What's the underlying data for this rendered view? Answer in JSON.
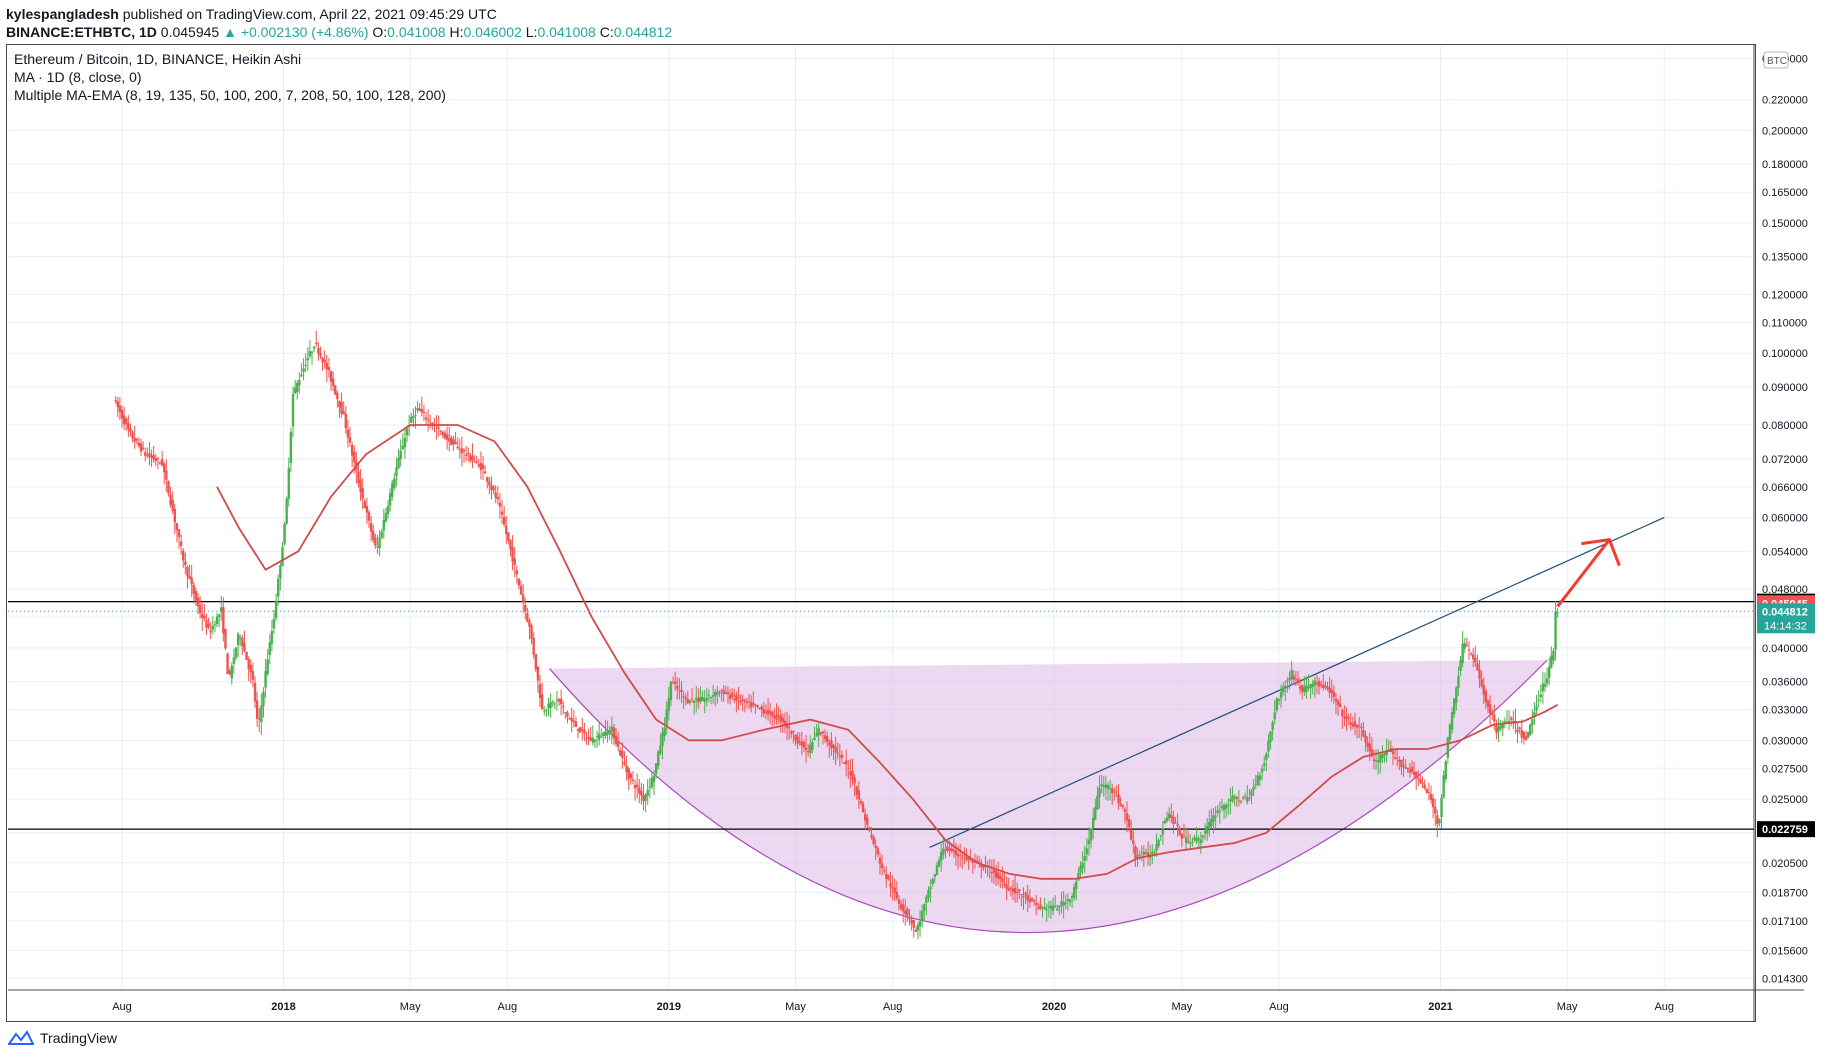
{
  "header": {
    "publisher": "kylespangladesh",
    "published_text": "published on TradingView.com, April 22, 2021 09:45:29 UTC",
    "symbol": "BINANCE:ETHBTC, 1D",
    "last": "0.045945",
    "change": "▲ +0.002130 (+4.86%)",
    "o_label": "O:",
    "o_val": "0.041008",
    "h_label": "H:",
    "h_val": "0.046002",
    "l_label": "L:",
    "l_val": "0.041008",
    "c_label": "C:",
    "c_val": "0.044812"
  },
  "legend": {
    "line1": "Ethereum / Bitcoin, 1D, BINANCE, Heikin Ashi",
    "line2": "MA · 1D (8, close, 0)",
    "line3": "Multiple MA-EMA (8, 19, 135, 50, 100, 200, 7, 208, 50, 100, 128, 200)"
  },
  "footer": {
    "brand": "TradingView"
  },
  "colors": {
    "up": "#26a69a",
    "candle_green": "#4caf50",
    "down": "#ef5350",
    "ma": "#d24b4b",
    "cup_fill": "#e1bee7",
    "cup_line": "#ab47bc",
    "trend": "#1f4e79",
    "arrow": "#f23c2f",
    "grid": "#e8eef5"
  },
  "chart_data": {
    "type": "candlestick",
    "title": "Ethereum / Bitcoin, 1D, BINANCE, Heikin Ashi",
    "currency_badge": "BTC",
    "scale": "log",
    "ylim": [
      0.0138,
      0.26
    ],
    "xlim": [
      "2017-04-15",
      "2021-10-25"
    ],
    "y_ticks": [
      "0.014300",
      "0.015600",
      "0.017100",
      "0.018700",
      "0.020500",
      "0.022500",
      "0.025000",
      "0.027500",
      "0.030000",
      "0.033000",
      "0.036000",
      "0.040000",
      "0.044000",
      "0.048000",
      "0.054000",
      "0.060000",
      "0.066000",
      "0.072000",
      "0.080000",
      "0.090000",
      "0.100000",
      "0.110000",
      "0.120000",
      "0.135000",
      "0.150000",
      "0.165000",
      "0.180000",
      "0.200000",
      "0.220000",
      "0.250000"
    ],
    "x_ticks": [
      {
        "date": "2017-08-01",
        "label": "Aug",
        "bold": false
      },
      {
        "date": "2018-01-01",
        "label": "2018",
        "bold": true
      },
      {
        "date": "2018-05-01",
        "label": "May",
        "bold": false
      },
      {
        "date": "2018-08-01",
        "label": "Aug",
        "bold": false
      },
      {
        "date": "2019-01-01",
        "label": "2019",
        "bold": true
      },
      {
        "date": "2019-05-01",
        "label": "May",
        "bold": false
      },
      {
        "date": "2019-08-01",
        "label": "Aug",
        "bold": false
      },
      {
        "date": "2020-01-01",
        "label": "2020",
        "bold": true
      },
      {
        "date": "2020-05-01",
        "label": "May",
        "bold": false
      },
      {
        "date": "2020-08-01",
        "label": "Aug",
        "bold": false
      },
      {
        "date": "2021-01-01",
        "label": "2021",
        "bold": true
      },
      {
        "date": "2021-05-01",
        "label": "May",
        "bold": false
      },
      {
        "date": "2021-08-01",
        "label": "Aug",
        "bold": false
      }
    ],
    "price_path": [
      [
        "2017-07-26",
        0.087
      ],
      [
        "2017-08-10",
        0.078
      ],
      [
        "2017-08-25",
        0.073
      ],
      [
        "2017-09-10",
        0.071
      ],
      [
        "2017-10-01",
        0.052
      ],
      [
        "2017-10-15",
        0.045
      ],
      [
        "2017-10-25",
        0.042
      ],
      [
        "2017-11-05",
        0.045
      ],
      [
        "2017-11-12",
        0.036
      ],
      [
        "2017-11-22",
        0.042
      ],
      [
        "2017-12-05",
        0.036
      ],
      [
        "2017-12-10",
        0.031
      ],
      [
        "2017-12-18",
        0.038
      ],
      [
        "2017-12-25",
        0.044
      ],
      [
        "2018-01-05",
        0.06
      ],
      [
        "2018-01-12",
        0.088
      ],
      [
        "2018-01-25",
        0.098
      ],
      [
        "2018-02-02",
        0.103
      ],
      [
        "2018-02-15",
        0.094
      ],
      [
        "2018-03-01",
        0.082
      ],
      [
        "2018-03-15",
        0.067
      ],
      [
        "2018-04-01",
        0.054
      ],
      [
        "2018-04-20",
        0.07
      ],
      [
        "2018-05-01",
        0.08
      ],
      [
        "2018-05-10",
        0.084
      ],
      [
        "2018-05-25",
        0.08
      ],
      [
        "2018-06-10",
        0.076
      ],
      [
        "2018-06-25",
        0.073
      ],
      [
        "2018-07-10",
        0.07
      ],
      [
        "2018-07-25",
        0.063
      ],
      [
        "2018-08-05",
        0.055
      ],
      [
        "2018-08-15",
        0.048
      ],
      [
        "2018-08-25",
        0.042
      ],
      [
        "2018-09-05",
        0.033
      ],
      [
        "2018-09-20",
        0.034
      ],
      [
        "2018-10-01",
        0.032
      ],
      [
        "2018-10-20",
        0.03
      ],
      [
        "2018-11-10",
        0.031
      ],
      [
        "2018-11-25",
        0.027
      ],
      [
        "2018-12-10",
        0.025
      ],
      [
        "2018-12-20",
        0.027
      ],
      [
        "2018-12-31",
        0.032
      ],
      [
        "2019-01-05",
        0.036
      ],
      [
        "2019-01-20",
        0.034
      ],
      [
        "2019-02-05",
        0.034
      ],
      [
        "2019-02-20",
        0.035
      ],
      [
        "2019-03-10",
        0.034
      ],
      [
        "2019-04-01",
        0.033
      ],
      [
        "2019-04-20",
        0.032
      ],
      [
        "2019-05-05",
        0.03
      ],
      [
        "2019-05-15",
        0.029
      ],
      [
        "2019-05-25",
        0.031
      ],
      [
        "2019-06-10",
        0.029
      ],
      [
        "2019-06-25",
        0.027
      ],
      [
        "2019-07-10",
        0.023
      ],
      [
        "2019-07-25",
        0.02
      ],
      [
        "2019-08-10",
        0.018
      ],
      [
        "2019-08-20",
        0.0172
      ],
      [
        "2019-08-25",
        0.0165
      ],
      [
        "2019-09-05",
        0.0185
      ],
      [
        "2019-09-20",
        0.0215
      ],
      [
        "2019-10-05",
        0.021
      ],
      [
        "2019-10-20",
        0.0205
      ],
      [
        "2019-11-05",
        0.02
      ],
      [
        "2019-11-20",
        0.019
      ],
      [
        "2019-12-05",
        0.0185
      ],
      [
        "2019-12-20",
        0.0178
      ],
      [
        "2020-01-05",
        0.0178
      ],
      [
        "2020-01-20",
        0.0185
      ],
      [
        "2020-02-05",
        0.022
      ],
      [
        "2020-02-15",
        0.026
      ],
      [
        "2020-02-25",
        0.026
      ],
      [
        "2020-03-10",
        0.024
      ],
      [
        "2020-03-20",
        0.021
      ],
      [
        "2020-04-05",
        0.021
      ],
      [
        "2020-04-20",
        0.024
      ],
      [
        "2020-05-05",
        0.022
      ],
      [
        "2020-05-20",
        0.022
      ],
      [
        "2020-06-05",
        0.024
      ],
      [
        "2020-06-20",
        0.025
      ],
      [
        "2020-07-05",
        0.025
      ],
      [
        "2020-07-20",
        0.028
      ],
      [
        "2020-08-01",
        0.034
      ],
      [
        "2020-08-15",
        0.037
      ],
      [
        "2020-08-25",
        0.035
      ],
      [
        "2020-09-05",
        0.036
      ],
      [
        "2020-09-20",
        0.035
      ],
      [
        "2020-10-05",
        0.032
      ],
      [
        "2020-10-20",
        0.031
      ],
      [
        "2020-11-01",
        0.028
      ],
      [
        "2020-11-15",
        0.029
      ],
      [
        "2020-11-25",
        0.028
      ],
      [
        "2020-12-10",
        0.027
      ],
      [
        "2020-12-25",
        0.025
      ],
      [
        "2021-01-01",
        0.023
      ],
      [
        "2021-01-10",
        0.03
      ],
      [
        "2021-01-25",
        0.041
      ],
      [
        "2021-02-05",
        0.038
      ],
      [
        "2021-02-15",
        0.034
      ],
      [
        "2021-02-25",
        0.031
      ],
      [
        "2021-03-10",
        0.032
      ],
      [
        "2021-03-25",
        0.03
      ],
      [
        "2021-04-05",
        0.034
      ],
      [
        "2021-04-15",
        0.037
      ],
      [
        "2021-04-20",
        0.04
      ],
      [
        "2021-04-22",
        0.0448
      ]
    ],
    "ma_line": [
      [
        "2017-10-30",
        0.066
      ],
      [
        "2017-11-20",
        0.058
      ],
      [
        "2017-12-15",
        0.051
      ],
      [
        "2018-01-15",
        0.054
      ],
      [
        "2018-02-15",
        0.064
      ],
      [
        "2018-03-20",
        0.073
      ],
      [
        "2018-05-01",
        0.08
      ],
      [
        "2018-06-15",
        0.08
      ],
      [
        "2018-07-20",
        0.076
      ],
      [
        "2018-08-20",
        0.066
      ],
      [
        "2018-09-20",
        0.054
      ],
      [
        "2018-10-20",
        0.044
      ],
      [
        "2018-11-20",
        0.037
      ],
      [
        "2018-12-20",
        0.032
      ],
      [
        "2019-01-20",
        0.03
      ],
      [
        "2019-02-20",
        0.03
      ],
      [
        "2019-04-01",
        0.031
      ],
      [
        "2019-05-15",
        0.032
      ],
      [
        "2019-06-20",
        0.031
      ],
      [
        "2019-07-20",
        0.028
      ],
      [
        "2019-08-20",
        0.025
      ],
      [
        "2019-09-20",
        0.022
      ],
      [
        "2019-10-20",
        0.0205
      ],
      [
        "2019-11-20",
        0.0198
      ],
      [
        "2019-12-20",
        0.0195
      ],
      [
        "2020-01-20",
        0.0195
      ],
      [
        "2020-02-20",
        0.0198
      ],
      [
        "2020-03-20",
        0.0208
      ],
      [
        "2020-04-20",
        0.0212
      ],
      [
        "2020-05-20",
        0.0215
      ],
      [
        "2020-06-20",
        0.0218
      ],
      [
        "2020-07-20",
        0.0225
      ],
      [
        "2020-08-20",
        0.0245
      ],
      [
        "2020-09-20",
        0.0268
      ],
      [
        "2020-10-20",
        0.0285
      ],
      [
        "2020-11-20",
        0.0292
      ],
      [
        "2020-12-20",
        0.0292
      ],
      [
        "2021-01-20",
        0.03
      ],
      [
        "2021-02-20",
        0.0315
      ],
      [
        "2021-03-20",
        0.0318
      ],
      [
        "2021-04-10",
        0.0328
      ],
      [
        "2021-04-22",
        0.0335
      ]
    ],
    "cup_pattern": {
      "left_rim": [
        "2018-09-10",
        0.0375
      ],
      "right_rim": [
        "2021-04-12",
        0.0385
      ],
      "bottom": [
        "2019-12-10",
        0.0165
      ]
    },
    "trendline": [
      [
        "2019-09-05",
        0.0215
      ],
      [
        "2021-08-01",
        0.06
      ]
    ],
    "forecast_arrow": [
      [
        "2021-04-22",
        0.0455
      ],
      [
        "2021-06-10",
        0.056
      ]
    ],
    "horizontal_lines": [
      0.04618,
      0.022759
    ],
    "last_price_line": 0.044812,
    "price_labels": [
      {
        "value": 0.04618,
        "text": "0.046180",
        "bg": "#000000",
        "fg": "#ffffff"
      },
      {
        "value": 0.045945,
        "text": "0.045945",
        "bg": "#ef5350",
        "fg": "#ffffff"
      },
      {
        "value": 0.044812,
        "text": "0.044812",
        "bg": "#26a69a",
        "fg": "#ffffff",
        "subtext": "14:14:32"
      },
      {
        "value": 0.022759,
        "text": "0.022759",
        "bg": "#000000",
        "fg": "#ffffff"
      }
    ]
  }
}
